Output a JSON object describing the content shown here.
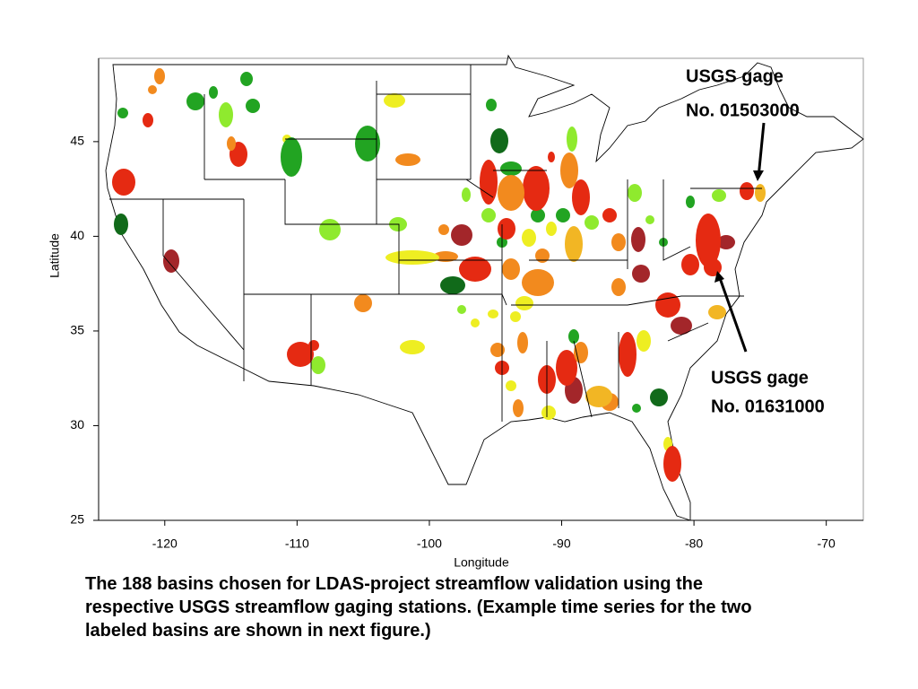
{
  "chart_data": {
    "type": "map",
    "xlabel": "Longitude",
    "ylabel": "Latitude",
    "xlim": [
      -125,
      -67.2
    ],
    "ylim": [
      25,
      49.4
    ],
    "xticks": [
      -120,
      -110,
      -100,
      -90,
      -80,
      -70
    ],
    "yticks": [
      25,
      30,
      35,
      40,
      45
    ],
    "annotations": [
      {
        "lines": [
          "USGS gage",
          "No. 01503000"
        ]
      },
      {
        "lines": [
          "USGS gage",
          "No. 01631000"
        ]
      }
    ],
    "caption": [
      "The 188 basins chosen for LDAS-project streamflow validation using the",
      "respective USGS streamflow gaging stations.  (Example time series for the two",
      "labeled basins are shown in next figure.)"
    ]
  }
}
